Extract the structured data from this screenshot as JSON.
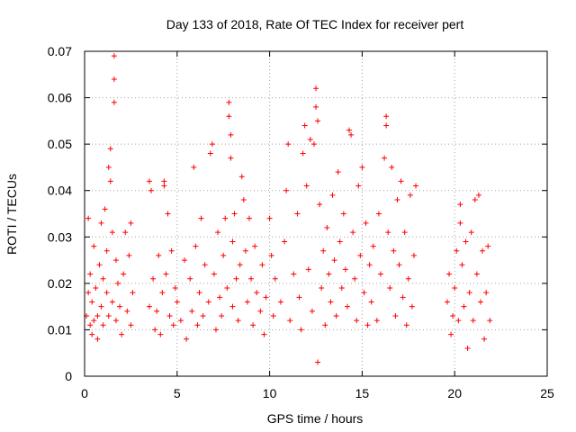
{
  "chart_data": {
    "type": "scatter",
    "title": "Day 133 of 2018, Rate Of TEC Index for receiver pert",
    "xlabel": "GPS time / hours",
    "ylabel": "ROTI / TECUs",
    "xlim": [
      0,
      25
    ],
    "ylim": [
      0,
      0.07
    ],
    "xticks": [
      0,
      5,
      10,
      15,
      20,
      25
    ],
    "xtick_labels": [
      "0",
      "5",
      "10",
      "15",
      "20",
      "25"
    ],
    "yticks": [
      0,
      0.01,
      0.02,
      0.03,
      0.04,
      0.05,
      0.06,
      0.07
    ],
    "ytick_labels": [
      "0",
      "0.01",
      "0.02",
      "0.03",
      "0.04",
      "0.05",
      "0.06",
      "0.07"
    ],
    "grid": true,
    "marker": "+",
    "marker_color": "#ff0000",
    "series": [
      {
        "points": [
          [
            0.1,
            0.013
          ],
          [
            0.2,
            0.034
          ],
          [
            0.2,
            0.018
          ],
          [
            0.3,
            0.011
          ],
          [
            0.3,
            0.022
          ],
          [
            0.4,
            0.009
          ],
          [
            0.4,
            0.016
          ],
          [
            0.5,
            0.012
          ],
          [
            0.5,
            0.028
          ],
          [
            0.6,
            0.019
          ],
          [
            0.7,
            0.013
          ],
          [
            0.7,
            0.008
          ],
          [
            0.8,
            0.024
          ],
          [
            0.9,
            0.015
          ],
          [
            0.9,
            0.033
          ],
          [
            1.0,
            0.021
          ],
          [
            1.0,
            0.011
          ],
          [
            1.1,
            0.036
          ],
          [
            1.2,
            0.018
          ],
          [
            1.2,
            0.027
          ],
          [
            1.3,
            0.045
          ],
          [
            1.3,
            0.013
          ],
          [
            1.4,
            0.042
          ],
          [
            1.4,
            0.049
          ],
          [
            1.5,
            0.031
          ],
          [
            1.5,
            0.016
          ],
          [
            1.6,
            0.069
          ],
          [
            1.6,
            0.064
          ],
          [
            1.6,
            0.059
          ],
          [
            1.7,
            0.025
          ],
          [
            1.7,
            0.012
          ],
          [
            1.8,
            0.02
          ],
          [
            1.9,
            0.015
          ],
          [
            2.0,
            0.009
          ],
          [
            2.1,
            0.022
          ],
          [
            2.2,
            0.031
          ],
          [
            2.3,
            0.014
          ],
          [
            2.4,
            0.026
          ],
          [
            2.5,
            0.011
          ],
          [
            2.5,
            0.033
          ],
          [
            2.6,
            0.018
          ],
          [
            3.5,
            0.042
          ],
          [
            3.5,
            0.015
          ],
          [
            3.6,
            0.04
          ],
          [
            3.7,
            0.021
          ],
          [
            3.8,
            0.01
          ],
          [
            3.9,
            0.014
          ],
          [
            4.0,
            0.026
          ],
          [
            4.1,
            0.009
          ],
          [
            4.2,
            0.018
          ],
          [
            4.3,
            0.042
          ],
          [
            4.3,
            0.041
          ],
          [
            4.4,
            0.022
          ],
          [
            4.5,
            0.035
          ],
          [
            4.6,
            0.013
          ],
          [
            4.7,
            0.027
          ],
          [
            4.8,
            0.011
          ],
          [
            4.9,
            0.019
          ],
          [
            5.0,
            0.016
          ],
          [
            5.2,
            0.012
          ],
          [
            5.4,
            0.025
          ],
          [
            5.5,
            0.008
          ],
          [
            5.7,
            0.021
          ],
          [
            5.8,
            0.014
          ],
          [
            5.9,
            0.045
          ],
          [
            6.0,
            0.028
          ],
          [
            6.1,
            0.011
          ],
          [
            6.2,
            0.018
          ],
          [
            6.3,
            0.034
          ],
          [
            6.4,
            0.013
          ],
          [
            6.5,
            0.024
          ],
          [
            6.7,
            0.016
          ],
          [
            6.8,
            0.048
          ],
          [
            6.9,
            0.05
          ],
          [
            7.0,
            0.022
          ],
          [
            7.1,
            0.01
          ],
          [
            7.2,
            0.031
          ],
          [
            7.3,
            0.017
          ],
          [
            7.4,
            0.013
          ],
          [
            7.5,
            0.026
          ],
          [
            7.6,
            0.034
          ],
          [
            7.7,
            0.019
          ],
          [
            7.8,
            0.059
          ],
          [
            7.8,
            0.056
          ],
          [
            7.9,
            0.052
          ],
          [
            7.9,
            0.047
          ],
          [
            8.0,
            0.029
          ],
          [
            8.0,
            0.015
          ],
          [
            8.1,
            0.035
          ],
          [
            8.2,
            0.021
          ],
          [
            8.3,
            0.012
          ],
          [
            8.4,
            0.024
          ],
          [
            8.5,
            0.043
          ],
          [
            8.6,
            0.038
          ],
          [
            8.7,
            0.027
          ],
          [
            8.8,
            0.016
          ],
          [
            8.9,
            0.034
          ],
          [
            9.0,
            0.021
          ],
          [
            9.1,
            0.011
          ],
          [
            9.2,
            0.028
          ],
          [
            9.3,
            0.018
          ],
          [
            9.5,
            0.014
          ],
          [
            9.6,
            0.024
          ],
          [
            9.7,
            0.009
          ],
          [
            9.8,
            0.017
          ],
          [
            10.0,
            0.034
          ],
          [
            10.1,
            0.026
          ],
          [
            10.2,
            0.013
          ],
          [
            10.3,
            0.021
          ],
          [
            10.6,
            0.016
          ],
          [
            10.8,
            0.029
          ],
          [
            10.9,
            0.04
          ],
          [
            11.0,
            0.05
          ],
          [
            11.1,
            0.012
          ],
          [
            11.3,
            0.022
          ],
          [
            11.5,
            0.035
          ],
          [
            11.6,
            0.017
          ],
          [
            11.7,
            0.01
          ],
          [
            11.8,
            0.048
          ],
          [
            11.9,
            0.054
          ],
          [
            12.0,
            0.041
          ],
          [
            12.1,
            0.023
          ],
          [
            12.2,
            0.051
          ],
          [
            12.3,
            0.014
          ],
          [
            12.4,
            0.05
          ],
          [
            12.5,
            0.062
          ],
          [
            12.5,
            0.058
          ],
          [
            12.6,
            0.055
          ],
          [
            12.6,
            0.003
          ],
          [
            12.7,
            0.037
          ],
          [
            12.8,
            0.019
          ],
          [
            12.9,
            0.027
          ],
          [
            13.0,
            0.011
          ],
          [
            13.1,
            0.032
          ],
          [
            13.2,
            0.022
          ],
          [
            13.3,
            0.016
          ],
          [
            13.4,
            0.039
          ],
          [
            13.5,
            0.025
          ],
          [
            13.6,
            0.013
          ],
          [
            13.7,
            0.044
          ],
          [
            13.8,
            0.029
          ],
          [
            13.9,
            0.019
          ],
          [
            14.0,
            0.035
          ],
          [
            14.1,
            0.023
          ],
          [
            14.2,
            0.015
          ],
          [
            14.3,
            0.053
          ],
          [
            14.4,
            0.052
          ],
          [
            14.5,
            0.031
          ],
          [
            14.6,
            0.021
          ],
          [
            14.7,
            0.012
          ],
          [
            14.8,
            0.041
          ],
          [
            14.9,
            0.026
          ],
          [
            15.0,
            0.045
          ],
          [
            15.1,
            0.018
          ],
          [
            15.2,
            0.033
          ],
          [
            15.3,
            0.011
          ],
          [
            15.4,
            0.024
          ],
          [
            15.5,
            0.016
          ],
          [
            15.6,
            0.028
          ],
          [
            15.8,
            0.012
          ],
          [
            15.9,
            0.035
          ],
          [
            16.0,
            0.022
          ],
          [
            16.2,
            0.047
          ],
          [
            16.3,
            0.056
          ],
          [
            16.3,
            0.054
          ],
          [
            16.4,
            0.031
          ],
          [
            16.5,
            0.019
          ],
          [
            16.6,
            0.045
          ],
          [
            16.7,
            0.027
          ],
          [
            16.8,
            0.013
          ],
          [
            16.9,
            0.038
          ],
          [
            17.0,
            0.024
          ],
          [
            17.1,
            0.042
          ],
          [
            17.2,
            0.017
          ],
          [
            17.3,
            0.031
          ],
          [
            17.4,
            0.011
          ],
          [
            17.5,
            0.021
          ],
          [
            17.6,
            0.039
          ],
          [
            17.7,
            0.015
          ],
          [
            17.8,
            0.026
          ],
          [
            17.9,
            0.041
          ],
          [
            19.6,
            0.016
          ],
          [
            19.7,
            0.022
          ],
          [
            19.8,
            0.009
          ],
          [
            19.9,
            0.013
          ],
          [
            20.0,
            0.019
          ],
          [
            20.1,
            0.027
          ],
          [
            20.2,
            0.012
          ],
          [
            20.3,
            0.033
          ],
          [
            20.3,
            0.037
          ],
          [
            20.4,
            0.024
          ],
          [
            20.5,
            0.015
          ],
          [
            20.6,
            0.029
          ],
          [
            20.7,
            0.006
          ],
          [
            20.8,
            0.018
          ],
          [
            20.9,
            0.031
          ],
          [
            21.0,
            0.012
          ],
          [
            21.1,
            0.038
          ],
          [
            21.2,
            0.022
          ],
          [
            21.3,
            0.039
          ],
          [
            21.4,
            0.016
          ],
          [
            21.5,
            0.027
          ],
          [
            21.6,
            0.008
          ],
          [
            21.7,
            0.018
          ],
          [
            21.8,
            0.028
          ],
          [
            21.9,
            0.012
          ]
        ]
      }
    ]
  }
}
